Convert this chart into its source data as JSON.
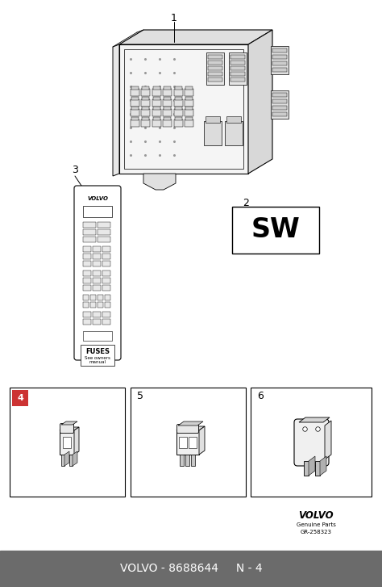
{
  "background_color": "#ffffff",
  "footer_color": "#6b6b6b",
  "footer_text": "VOLVO - 8688644     N - 4",
  "footer_text_color": "#ffffff",
  "footer_font_size": 10,
  "volvo_logo_text": "VOLVO",
  "genuine_parts_text": "Genuine Parts",
  "gr_text": "GR-258323",
  "item1_label": "1",
  "item2_label": "2",
  "item3_label": "3",
  "item4_label": "4",
  "item5_label": "5",
  "item6_label": "6",
  "sw_text": "SW",
  "fuses_text": "FUSES",
  "fuses_sub_text": "See owners\nmanual",
  "volvo_label_text": "VOLVO"
}
